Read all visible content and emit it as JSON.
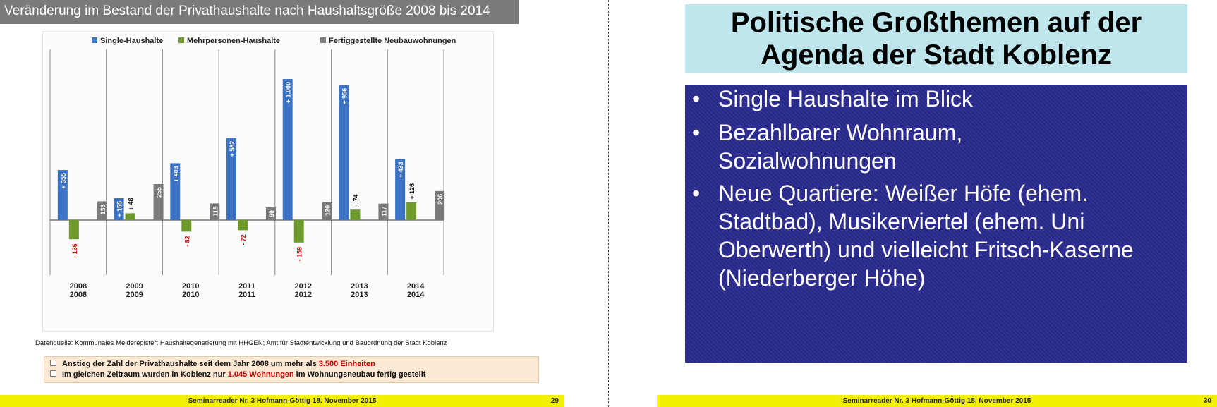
{
  "left_slide": {
    "title": "Veränderung im Bestand der Privathaushalte nach Haushaltsgröße 2008 bis 2014",
    "data_source": "Datenquelle: Kommunales Melderegister; Haushaltegenerierung mit HHGEN; Amt für Stadtentwicklung und Bauordnung der Stadt Koblenz",
    "notes": [
      {
        "pre": "Anstieg der Zahl der Privathaushalte seit dem Jahr 2008 um mehr als ",
        "highlight": "3.500 Einheiten",
        "post": ""
      },
      {
        "pre": "Im gleichen Zeitraum wurden in Koblenz  nur ",
        "highlight": "1.045 Wohnungen",
        "post": " im Wohnungsneubau fertig gestellt"
      }
    ],
    "footer_text": "Seminarreader Nr. 3 Hofmann-Göttig 18. November 2015",
    "page_number": "29"
  },
  "chart_data": {
    "type": "bar",
    "categories": [
      "2008",
      "2009",
      "2010",
      "2011",
      "2012",
      "2013",
      "2014"
    ],
    "series": [
      {
        "name": "Single-Haushalte",
        "color": "#3c73c4",
        "values": [
          355,
          155,
          403,
          582,
          1000,
          956,
          433
        ],
        "labels": [
          "+ 355",
          "+ 155",
          "+ 403",
          "+ 582",
          "+ 1.000",
          "+ 956",
          "+ 433"
        ]
      },
      {
        "name": "Mehrpersonen-Haushalte",
        "color": "#6e9a2c",
        "values": [
          -136,
          48,
          -82,
          -72,
          -159,
          74,
          126
        ],
        "labels": [
          "- 136",
          "+ 48",
          "- 82",
          "- 72",
          "- 159",
          "+ 74",
          "+ 126"
        ]
      },
      {
        "name": "Fertiggestellte Neubauwohnungen",
        "color": "#7a7a7a",
        "values": [
          133,
          255,
          118,
          90,
          126,
          117,
          206
        ],
        "labels": [
          "133",
          "255",
          "118",
          "90",
          "126",
          "117",
          "206"
        ]
      }
    ],
    "title": "",
    "xlabel": "",
    "ylabel": "",
    "ylim": [
      -430,
      1100
    ],
    "legend_position": "top"
  },
  "right_slide": {
    "title_line1": "Politische Großthemen auf der",
    "title_line2": "Agenda der Stadt Koblenz",
    "bullet_symbol": "•",
    "bullets": [
      {
        "line1": "Single Haushalte im Blick"
      },
      {
        "line1": "Bezahlbarer Wohnraum,",
        "line2": "Sozialwohnungen"
      },
      {
        "line1": "Neue Quartiere: Weißer Höfe (ehem.",
        "line2": "Stadtbad), Musikerviertel (ehem. Uni",
        "line3": "Oberwerth) und vielleicht Fritsch-Kaserne",
        "line4": "(Niederberger Höhe)"
      }
    ],
    "footer_text": "Seminarreader Nr. 3 Hofmann-Göttig 18. November 2015",
    "page_number": "30"
  }
}
